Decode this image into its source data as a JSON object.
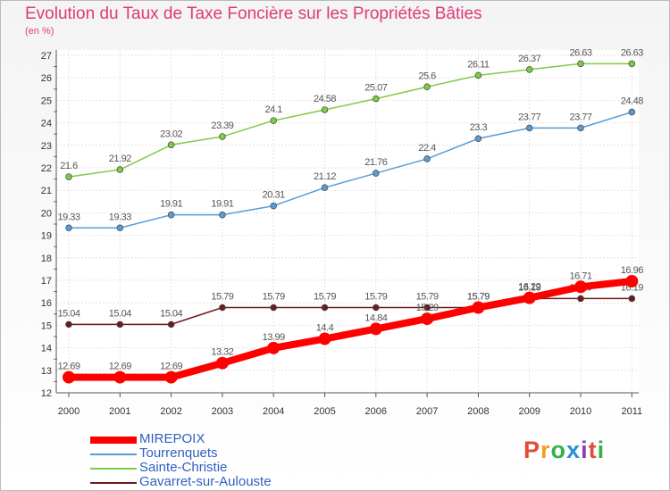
{
  "title": "Evolution du Taux de Taxe Foncière sur les Propriétés Bâties",
  "unit": "(en %)",
  "logo": {
    "text": "Proxiti",
    "colors": [
      "#e24b3b",
      "#f0a020",
      "#2fb34a",
      "#2a8fd6",
      "#8a3fb6",
      "#e24b3b",
      "#2fb34a"
    ]
  },
  "chart_data": {
    "type": "line",
    "x": [
      2000,
      2001,
      2002,
      2003,
      2004,
      2005,
      2006,
      2007,
      2008,
      2009,
      2010,
      2011
    ],
    "ylim": [
      12,
      27
    ],
    "yticks": [
      12,
      13,
      14,
      15,
      16,
      17,
      18,
      19,
      20,
      21,
      22,
      23,
      24,
      25,
      26,
      27
    ],
    "grid": true,
    "series": [
      {
        "name": "MIREPOIX",
        "color": "#ff0000",
        "values": [
          12.69,
          12.69,
          12.69,
          13.32,
          13.99,
          14.4,
          14.84,
          15.29,
          15.79,
          16.22,
          16.71,
          16.96
        ],
        "labels": [
          "12.69",
          "12.69",
          "12.69",
          "13.32",
          "13.99",
          "14.4",
          "14.84",
          "15.29",
          "15.79",
          "16.22",
          "16.71",
          "16.96"
        ]
      },
      {
        "name": "Tourrenquets",
        "color": "#5a9bd4",
        "values": [
          19.33,
          19.33,
          19.91,
          19.91,
          20.31,
          21.12,
          21.76,
          22.4,
          23.3,
          23.77,
          23.77,
          24.48
        ],
        "labels": [
          "19.33",
          "19.33",
          "19.91",
          "19.91",
          "20.31",
          "21.12",
          "21.76",
          "22.4",
          "23.3",
          "23.77",
          "23.77",
          "24.48"
        ]
      },
      {
        "name": "Sainte-Christie",
        "color": "#7ecb46",
        "values": [
          21.6,
          21.92,
          23.02,
          23.39,
          24.1,
          24.58,
          25.07,
          25.6,
          26.11,
          26.37,
          26.63,
          26.63
        ],
        "labels": [
          "21.6",
          "21.92",
          "23.02",
          "23.39",
          "24.1",
          "24.58",
          "25.07",
          "25.6",
          "26.11",
          "26.37",
          "26.63",
          "26.63"
        ]
      },
      {
        "name": "Gavarret-sur-Aulouste",
        "color": "#6b1c1c",
        "values": [
          15.04,
          15.04,
          15.04,
          15.79,
          15.79,
          15.79,
          15.79,
          15.79,
          15.79,
          16.19,
          16.19,
          16.19
        ],
        "labels": [
          "15.04",
          "15.04",
          "15.04",
          "15.79",
          "15.79",
          "15.79",
          "15.79",
          "15.79",
          "15.79",
          "16.19",
          "16.19",
          "16.19"
        ]
      }
    ]
  }
}
